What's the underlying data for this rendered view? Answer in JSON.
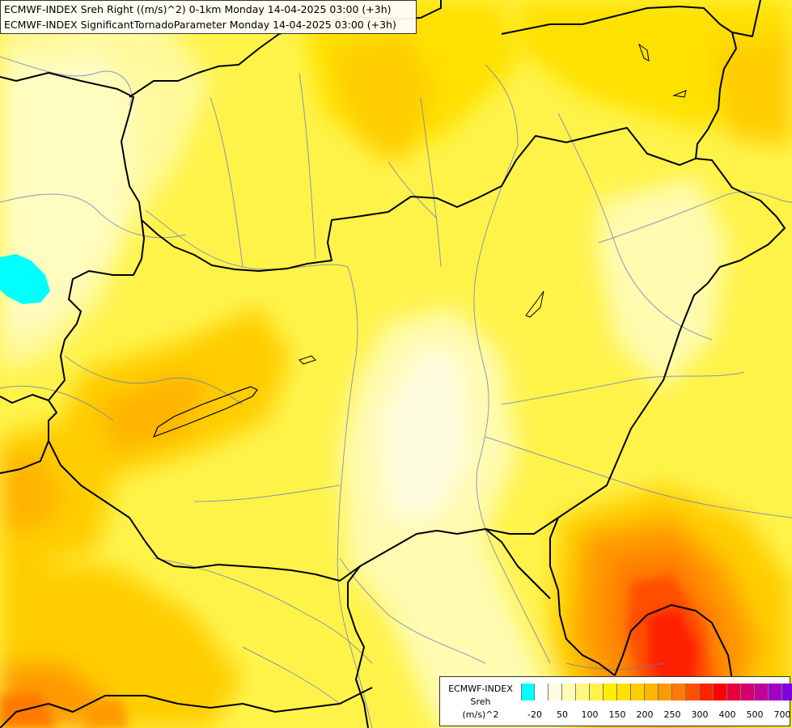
{
  "titles": {
    "line1": "ECMWF-INDEX Sreh Right ((m/s)^2) 0-1km Monday 14-04-2025 03:00 (+3h)",
    "line2": "ECMWF-INDEX SignificantTornadoParameter Monday 14-04-2025 03:00 (+3h)"
  },
  "legend": {
    "model": "ECMWF-INDEX",
    "parameter": "Sreh",
    "units": "(m/s)^2",
    "swatch_colors": [
      "#00ffff",
      "#ffffff",
      "#fffde0",
      "#fffbb0",
      "#fff880",
      "#fff34a",
      "#ffee00",
      "#ffe100",
      "#ffcd00",
      "#ffb400",
      "#ff9a00",
      "#ff7a00",
      "#ff5000",
      "#ff2400",
      "#ff0000",
      "#e8003a",
      "#d4006e",
      "#c0009c",
      "#a000c8",
      "#8000e0",
      "#5a10c8",
      "#3010a8",
      "#000080"
    ],
    "tick_labels": [
      {
        "label": "-20",
        "index": 1
      },
      {
        "label": "50",
        "index": 3
      },
      {
        "label": "100",
        "index": 5
      },
      {
        "label": "150",
        "index": 7
      },
      {
        "label": "200",
        "index": 9
      },
      {
        "label": "250",
        "index": 11
      },
      {
        "label": "300",
        "index": 13
      },
      {
        "label": "400",
        "index": 15
      },
      {
        "label": "500",
        "index": 17
      },
      {
        "label": "700",
        "index": 19
      }
    ]
  }
}
